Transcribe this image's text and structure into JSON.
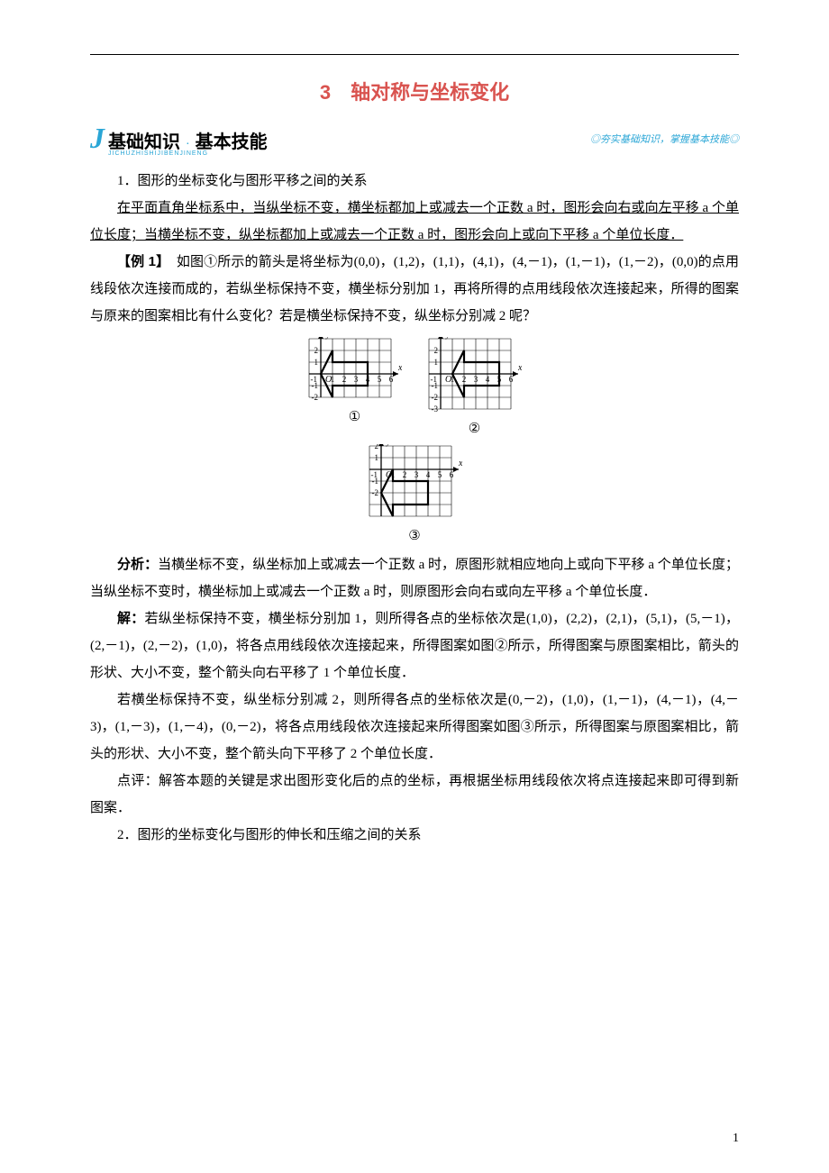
{
  "title": "3　轴对称与坐标变化",
  "banner": {
    "j_glyph": "J",
    "left_a": "基础知识",
    "sep": "·",
    "left_b": "基本技能",
    "pinyin": "JICHUZHISHIJIBENJINENG",
    "right": "◎夯实基础知识，掌握基本技能◎"
  },
  "section1_heading": "1．图形的坐标变化与图形平移之间的关系",
  "section1_body": "在平面直角坐标系中，当纵坐标不变，横坐标都加上或减去一个正数 a 时，图形会向右或向左平移 a 个单位长度；当横坐标不变，纵坐标都加上或减去一个正数 a 时，图形会向上或向下平移 a 个单位长度．",
  "example1_label": "【例 1】",
  "example1_body": "　如图①所示的箭头是将坐标为(0,0)，(1,2)，(1,1)，(4,1)，(4,－1)，(1,－1)，(1,－2)，(0,0)的点用线段依次连接而成的，若纵坐标保持不变，横坐标分别加 1，再将所得的点用线段依次连接起来，所得的图案与原来的图案相比有什么变化？若是横坐标保持不变，纵坐标分别减 2 呢？",
  "figures": {
    "labels": {
      "fig1": "①",
      "fig2": "②",
      "fig3": "③"
    },
    "axis_labels": {
      "x": "x",
      "y": "y",
      "origin": "O",
      "neg1": "-1"
    },
    "grid_color": "#000000",
    "grid_stroke": 0.6,
    "axis_stroke": 1.3,
    "arrow_stroke": 2.2,
    "tick_fontsize": 9,
    "cell": 13,
    "fig1": {
      "x_range": [
        -1,
        6
      ],
      "y_range": [
        -2,
        3
      ],
      "y_ticks": [
        1,
        2
      ],
      "y_neg_ticks": [
        -1,
        -2
      ],
      "x_ticks": [
        1,
        2,
        3,
        4,
        5,
        6
      ],
      "poly": [
        [
          0,
          0
        ],
        [
          1,
          2
        ],
        [
          1,
          1
        ],
        [
          4,
          1
        ],
        [
          4,
          -1
        ],
        [
          1,
          -1
        ],
        [
          1,
          -2
        ],
        [
          0,
          0
        ]
      ]
    },
    "fig2": {
      "x_range": [
        -1,
        6
      ],
      "y_range": [
        -3,
        3
      ],
      "y_ticks": [
        1,
        2
      ],
      "y_neg_ticks": [
        -1,
        -2,
        -3
      ],
      "x_ticks": [
        1,
        2,
        3,
        4,
        5,
        6
      ],
      "poly": [
        [
          1,
          0
        ],
        [
          2,
          2
        ],
        [
          2,
          1
        ],
        [
          5,
          1
        ],
        [
          5,
          -1
        ],
        [
          2,
          -1
        ],
        [
          2,
          -2
        ],
        [
          1,
          0
        ]
      ]
    },
    "fig3": {
      "x_range": [
        -1,
        6
      ],
      "y_range": [
        -4,
        2
      ],
      "y_ticks": [
        1,
        2
      ],
      "y_neg_ticks": [
        -1,
        -2
      ],
      "x_ticks": [
        1,
        2,
        3,
        4,
        5,
        6
      ],
      "poly": [
        [
          0,
          -2
        ],
        [
          1,
          0
        ],
        [
          1,
          -1
        ],
        [
          4,
          -1
        ],
        [
          4,
          -3
        ],
        [
          1,
          -3
        ],
        [
          1,
          -4
        ],
        [
          0,
          -2
        ]
      ]
    }
  },
  "analysis_label": "分析：",
  "analysis_body": "当横坐标不变，纵坐标加上或减去一个正数 a 时，原图形就相应地向上或向下平移 a 个单位长度；当纵坐标不变时，横坐标加上或减去一个正数 a 时，则原图形会向右或向左平移 a 个单位长度．",
  "solution_label": "解：",
  "solution_p1": "若纵坐标保持不变，横坐标分别加 1，则所得各点的坐标依次是(1,0)，(2,2)，(2,1)，(5,1)，(5,－1)，(2,－1)，(2,－2)，(1,0)，将各点用线段依次连接起来，所得图案如图②所示，所得图案与原图案相比，箭头的形状、大小不变，整个箭头向右平移了 1 个单位长度．",
  "solution_p2": "若横坐标保持不变，纵坐标分别减 2，则所得各点的坐标依次是(0,－2)，(1,0)，(1,－1)，(4,－1)，(4,－3)，(1,－3)，(1,－4)，(0,－2)，将各点用线段依次连接起来所得图案如图③所示，所得图案与原图案相比，箭头的形状、大小不变，整个箭头向下平移了 2 个单位长度．",
  "comment_label": "点评：",
  "comment_body": "解答本题的关键是求出图形变化后的点的坐标，再根据坐标用线段依次将点连接起来即可得到新图案．",
  "section2_heading": "2．图形的坐标变化与图形的伸长和压缩之间的关系",
  "page_number": "1",
  "colors": {
    "title_color": "#d9534f",
    "accent_color": "#2aa6d6",
    "text_color": "#000000",
    "background": "#ffffff"
  }
}
